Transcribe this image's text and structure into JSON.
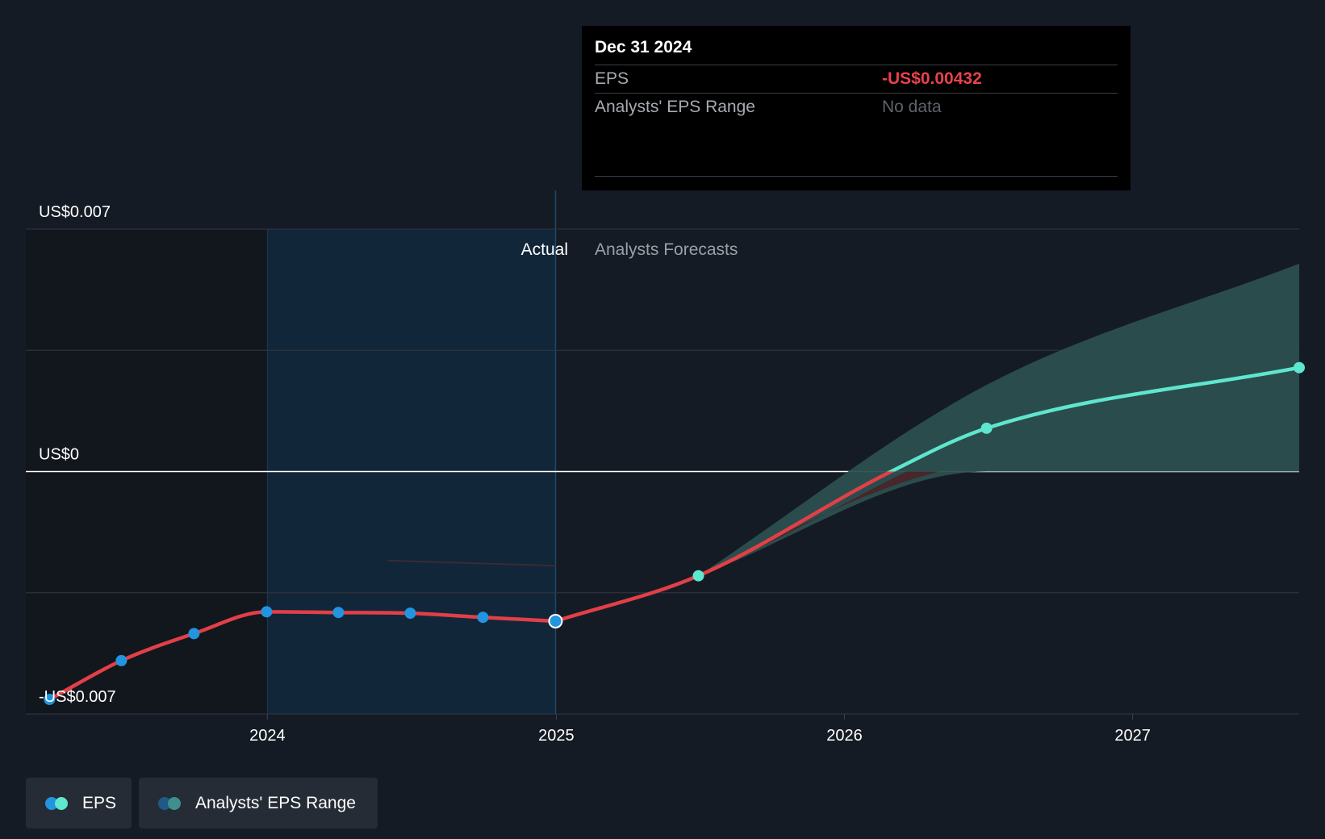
{
  "tooltip": {
    "date": "Dec 31 2024",
    "rows": [
      {
        "label": "EPS",
        "value": "-US$0.00432"
      },
      {
        "label": "Analysts' EPS Range",
        "value": "No data"
      }
    ]
  },
  "sections": {
    "actual": "Actual",
    "forecast": "Analysts Forecasts"
  },
  "legend": {
    "eps": "EPS",
    "range": "Analysts' EPS Range"
  },
  "colors": {
    "background": "#151b24",
    "actual_band": "#112639",
    "eps_line": "#e23f47",
    "eps_point_actual": "#2394df",
    "forecast_line": "#5ee6cf",
    "forecast_range": "#2c4f4f",
    "negative_range": "#4a2229"
  },
  "chart_data": {
    "type": "line",
    "title": "",
    "xlabel": "",
    "ylabel": "",
    "x_ticks": [
      "2024",
      "2025",
      "2026",
      "2027"
    ],
    "y_ticks": [
      "-US$0.007",
      "US$0",
      "US$0.007"
    ],
    "ylim": [
      -0.007,
      0.007
    ],
    "xlim": [
      "2023-03-01",
      "2027-07-31"
    ],
    "grid": true,
    "legend_position": "bottom-left",
    "actual_end": "2024-12-31",
    "series": [
      {
        "name": "EPS",
        "kind": "actual",
        "points": [
          {
            "x": "2023-03-31",
            "y": -0.00658
          },
          {
            "x": "2023-06-30",
            "y": -0.00546
          },
          {
            "x": "2023-09-30",
            "y": -0.00468
          },
          {
            "x": "2023-12-31",
            "y": -0.00405
          },
          {
            "x": "2024-03-31",
            "y": -0.00407
          },
          {
            "x": "2024-06-30",
            "y": -0.00409
          },
          {
            "x": "2024-09-30",
            "y": -0.00421
          },
          {
            "x": "2024-12-31",
            "y": -0.00432
          }
        ]
      },
      {
        "name": "EPS",
        "kind": "forecast",
        "points": [
          {
            "x": "2024-12-31",
            "y": -0.00432
          },
          {
            "x": "2025-06-30",
            "y": -0.00301
          },
          {
            "x": "2026-03-01",
            "y": 0.0
          },
          {
            "x": "2026-06-30",
            "y": 0.00125
          },
          {
            "x": "2027-07-31",
            "y": 0.003
          }
        ]
      },
      {
        "name": "Analysts' EPS Range",
        "kind": "range",
        "points": [
          {
            "x": "2025-06-30",
            "low": -0.00301,
            "high": -0.00301
          },
          {
            "x": "2026-06-30",
            "low": 0.0,
            "high": 0.0025
          },
          {
            "x": "2027-07-31",
            "low": 0.0,
            "high": 0.006
          }
        ]
      }
    ]
  }
}
